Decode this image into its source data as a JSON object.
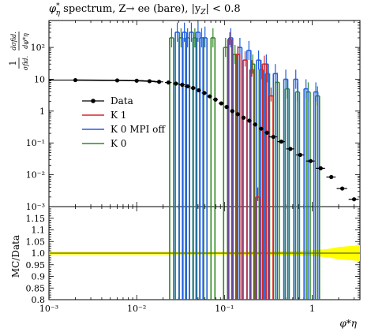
{
  "title": "φ*η spectrum, Z→ ee (bare), |yZ| < 0.8",
  "title_parts": {
    "phi": "φ",
    "star": "*",
    "eta": "η",
    "text": " spectrum, Z→ ee (bare), |y",
    "z": "Z",
    "cut": "| < 0.8"
  },
  "colors": {
    "data": "#000000",
    "k1": "#d62728",
    "kmpi": "#1f5fe0",
    "k0": "#2e8b22",
    "band": "#ffff00"
  },
  "chart_data": [
    {
      "type": "line",
      "xscale": "log",
      "yscale": "log",
      "xlim": [
        0.001,
        3.5
      ],
      "ylim": [
        0.001,
        700
      ],
      "ylabel": {
        "num": "1",
        "den": "σfid.",
        "frac_num": "dσfid.",
        "frac_den": "dφ*η"
      },
      "yticks": [
        "10⁻³",
        "10⁻²",
        "10⁻¹",
        "1",
        "10",
        "10²"
      ],
      "legend": {
        "placement": "left-middle",
        "entries": [
          "Data",
          "K 1",
          "K 0 MPI off",
          "K 0"
        ]
      },
      "series": [
        {
          "name": "Data",
          "style": "points",
          "x": [
            0.002,
            0.006,
            0.01,
            0.014,
            0.018,
            0.023,
            0.028,
            0.033,
            0.038,
            0.044,
            0.051,
            0.059,
            0.068,
            0.079,
            0.092,
            0.106,
            0.123,
            0.142,
            0.165,
            0.192,
            0.224,
            0.262,
            0.306,
            0.36,
            0.445,
            0.565,
            0.73,
            0.96,
            1.25,
            1.65,
            2.2,
            3.0
          ],
          "xerr": [
            0.001,
            0.002,
            0.002,
            0.002,
            0.002,
            0.002,
            0.002,
            0.003,
            0.003,
            0.003,
            0.003,
            0.004,
            0.004,
            0.005,
            0.006,
            0.006,
            0.007,
            0.008,
            0.01,
            0.012,
            0.014,
            0.016,
            0.02,
            0.04,
            0.045,
            0.06,
            0.08,
            0.11,
            0.15,
            0.2,
            0.3,
            0.4
          ],
          "values": [
            9.4,
            9.2,
            9.0,
            8.7,
            8.3,
            7.9,
            7.3,
            6.7,
            6.0,
            5.3,
            4.5,
            3.7,
            2.9,
            2.3,
            1.75,
            1.35,
            1.0,
            0.8,
            0.62,
            0.5,
            0.38,
            0.28,
            0.21,
            0.155,
            0.11,
            0.065,
            0.042,
            0.027,
            0.016,
            0.0085,
            0.0037,
            0.0017
          ]
        },
        {
          "name": "K 1",
          "style": "bins",
          "x": [
            0.115,
            0.142,
            0.172,
            0.205,
            0.24,
            0.285,
            0.34
          ],
          "values": [
            180,
            60,
            40,
            20,
            0.002,
            30,
            3.0
          ],
          "err_lo": [
            120,
            40,
            25,
            12,
            0.0015,
            18,
            2.0
          ],
          "err_hi": [
            300,
            110,
            75,
            40,
            0.004,
            55,
            5.5
          ]
        },
        {
          "name": "K 0 MPI off",
          "style": "bins",
          "x": [
            0.029,
            0.035,
            0.042,
            0.05,
            0.06,
            0.118,
            0.15,
            0.19,
            0.245,
            0.3,
            0.38,
            0.5,
            0.65,
            0.85,
            1.1
          ],
          "values": [
            300,
            300,
            300,
            300,
            200,
            200,
            100,
            80,
            40,
            30,
            15,
            10,
            10,
            5,
            4
          ],
          "err_lo": [
            150,
            150,
            150,
            150,
            100,
            100,
            50,
            40,
            20,
            15,
            8,
            5,
            5,
            2.5,
            2
          ],
          "err_hi": [
            600,
            600,
            600,
            600,
            450,
            400,
            200,
            160,
            80,
            60,
            30,
            20,
            20,
            10,
            8
          ]
        },
        {
          "name": "K 0",
          "style": "bins",
          "x": [
            0.025,
            0.032,
            0.038,
            0.046,
            0.055,
            0.074,
            0.103,
            0.132,
            0.21,
            0.262,
            0.31,
            0.4,
            0.52,
            0.68,
            0.9,
            1.15
          ],
          "values": [
            200,
            200,
            200,
            200,
            200,
            200,
            100,
            60,
            30,
            20,
            15,
            8,
            5,
            4,
            4,
            3
          ],
          "err_lo": [
            100,
            100,
            100,
            100,
            100,
            100,
            50,
            30,
            15,
            10,
            8,
            4,
            2.5,
            2,
            2,
            1.5
          ],
          "err_hi": [
            400,
            400,
            400,
            400,
            400,
            400,
            200,
            120,
            60,
            40,
            30,
            16,
            10,
            8,
            8,
            6
          ]
        }
      ]
    },
    {
      "type": "line",
      "xscale": "log",
      "xlim": [
        0.001,
        3.5
      ],
      "ylim": [
        0.8,
        1.2
      ],
      "ylabel": "MC/Data",
      "xlabel": "φ*η",
      "xticks": [
        "10⁻³",
        "10⁻²",
        "10⁻¹",
        "1"
      ],
      "yticks": [
        "0.8",
        "0.85",
        "0.9",
        "0.95",
        "1.0",
        "1.05",
        "1.1",
        "1.15"
      ],
      "band": {
        "x": [
          0.001,
          0.1,
          0.3,
          0.6,
          1.0,
          1.5,
          2.0,
          3.5
        ],
        "half_width": [
          0.006,
          0.006,
          0.007,
          0.009,
          0.012,
          0.018,
          0.026,
          0.034
        ]
      }
    }
  ]
}
